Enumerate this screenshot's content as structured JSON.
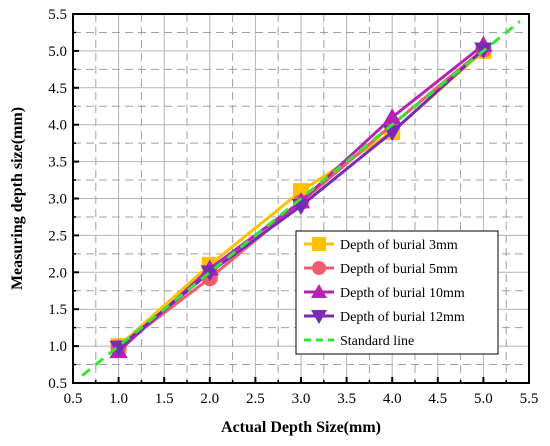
{
  "chart_data": {
    "type": "line",
    "title": "",
    "xlabel": "Actual Depth Size(mm)",
    "ylabel": "Measuring depth size(mm)",
    "xlim": [
      0.5,
      5.5
    ],
    "ylim": [
      0.5,
      5.5
    ],
    "x_ticks": [
      "0.5",
      "1.0",
      "1.5",
      "2.0",
      "2.5",
      "3.0",
      "3.5",
      "4.0",
      "4.5",
      "5.0",
      "5.5"
    ],
    "y_ticks": [
      "0.5",
      "1.0",
      "1.5",
      "2.0",
      "2.5",
      "3.0",
      "3.5",
      "4.0",
      "4.5",
      "5.0",
      "5.5"
    ],
    "grid": true,
    "legend_position": "bottom-right",
    "series": [
      {
        "name": "Depth of burial 3mm",
        "color": "#FFC000",
        "marker": "square",
        "x": [
          1.0,
          2.0,
          3.0,
          4.0,
          5.0
        ],
        "y": [
          1.0,
          2.1,
          3.1,
          3.9,
          5.0
        ]
      },
      {
        "name": "Depth of burial 5mm",
        "color": "#F25C6E",
        "marker": "circle",
        "x": [
          1.0,
          2.0,
          3.0,
          4.0,
          5.0
        ],
        "y": [
          0.98,
          1.92,
          2.95,
          4.0,
          5.02
        ]
      },
      {
        "name": "Depth of burial 10mm",
        "color": "#B324B3",
        "marker": "triangle-up",
        "x": [
          1.0,
          2.0,
          3.0,
          4.0,
          5.0
        ],
        "y": [
          0.93,
          2.05,
          2.96,
          4.1,
          5.08
        ]
      },
      {
        "name": "Depth of burial 12mm",
        "color": "#7A2AB8",
        "marker": "triangle-down",
        "x": [
          1.0,
          2.0,
          3.0,
          4.0,
          5.0
        ],
        "y": [
          0.98,
          2.0,
          2.9,
          3.9,
          5.02
        ]
      }
    ],
    "reference_line": {
      "name": "Standard line",
      "color": "#33E633",
      "style": "dashed",
      "x": [
        0.6,
        5.4
      ],
      "y": [
        0.6,
        5.4
      ]
    }
  }
}
